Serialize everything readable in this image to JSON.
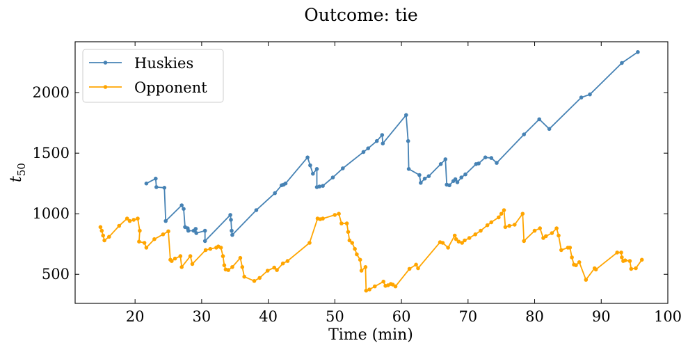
{
  "chart_data": {
    "type": "line",
    "title": "Outcome: tie",
    "xlabel": "Time (min)",
    "ylabel_base": "t",
    "ylabel_sub": "50",
    "xlim": [
      11,
      100
    ],
    "ylim": [
      260,
      2420
    ],
    "xticks": [
      20,
      30,
      40,
      50,
      60,
      70,
      80,
      90,
      100
    ],
    "yticks": [
      500,
      1000,
      1500,
      2000
    ],
    "legend_position": "upper-left",
    "grid": false,
    "series": [
      {
        "name": "Huskies",
        "color": "#4682b4",
        "points": [
          [
            21.7,
            1250
          ],
          [
            23.1,
            1290
          ],
          [
            23.2,
            1220
          ],
          [
            24.4,
            1215
          ],
          [
            24.6,
            940
          ],
          [
            27.0,
            1070
          ],
          [
            27.3,
            1040
          ],
          [
            27.5,
            890
          ],
          [
            27.9,
            880
          ],
          [
            28.0,
            860
          ],
          [
            28.8,
            860
          ],
          [
            29.1,
            875
          ],
          [
            29.2,
            840
          ],
          [
            30.5,
            860
          ],
          [
            30.5,
            775
          ],
          [
            34.3,
            990
          ],
          [
            34.4,
            950
          ],
          [
            34.5,
            860
          ],
          [
            34.6,
            825
          ],
          [
            38.2,
            1030
          ],
          [
            41.0,
            1170
          ],
          [
            42.0,
            1235
          ],
          [
            42.3,
            1240
          ],
          [
            42.6,
            1250
          ],
          [
            45.9,
            1465
          ],
          [
            46.3,
            1400
          ],
          [
            46.7,
            1330
          ],
          [
            47.3,
            1370
          ],
          [
            47.3,
            1220
          ],
          [
            47.7,
            1225
          ],
          [
            48.2,
            1230
          ],
          [
            49.7,
            1300
          ],
          [
            51.2,
            1375
          ],
          [
            54.3,
            1510
          ],
          [
            55.0,
            1540
          ],
          [
            56.3,
            1600
          ],
          [
            57.1,
            1650
          ],
          [
            57.2,
            1580
          ],
          [
            60.7,
            1815
          ],
          [
            61.0,
            1600
          ],
          [
            61.1,
            1370
          ],
          [
            62.7,
            1320
          ],
          [
            62.9,
            1255
          ],
          [
            63.5,
            1290
          ],
          [
            64.1,
            1310
          ],
          [
            65.9,
            1410
          ],
          [
            66.6,
            1450
          ],
          [
            66.8,
            1240
          ],
          [
            67.2,
            1235
          ],
          [
            67.8,
            1270
          ],
          [
            68.1,
            1285
          ],
          [
            68.4,
            1260
          ],
          [
            69.0,
            1300
          ],
          [
            69.6,
            1325
          ],
          [
            71.2,
            1410
          ],
          [
            71.6,
            1415
          ],
          [
            72.6,
            1465
          ],
          [
            73.5,
            1460
          ],
          [
            74.3,
            1420
          ],
          [
            78.4,
            1655
          ],
          [
            80.7,
            1780
          ],
          [
            82.2,
            1700
          ],
          [
            87.0,
            1960
          ],
          [
            88.3,
            1985
          ],
          [
            93.1,
            2245
          ],
          [
            95.5,
            2335
          ]
        ]
      },
      {
        "name": "Opponent",
        "color": "#ffa500",
        "points": [
          [
            14.8,
            890
          ],
          [
            15.0,
            860
          ],
          [
            15.2,
            820
          ],
          [
            15.4,
            780
          ],
          [
            16.1,
            810
          ],
          [
            17.6,
            900
          ],
          [
            18.8,
            960
          ],
          [
            19.2,
            940
          ],
          [
            19.8,
            950
          ],
          [
            20.4,
            960
          ],
          [
            20.7,
            860
          ],
          [
            20.6,
            770
          ],
          [
            21.4,
            760
          ],
          [
            21.7,
            720
          ],
          [
            22.9,
            790
          ],
          [
            24.2,
            830
          ],
          [
            25.0,
            855
          ],
          [
            25.3,
            620
          ],
          [
            25.5,
            610
          ],
          [
            26.0,
            630
          ],
          [
            26.8,
            650
          ],
          [
            27.0,
            560
          ],
          [
            28.3,
            650
          ],
          [
            28.6,
            585
          ],
          [
            30.6,
            700
          ],
          [
            31.3,
            710
          ],
          [
            32.2,
            720
          ],
          [
            32.5,
            730
          ],
          [
            32.9,
            720
          ],
          [
            33.2,
            650
          ],
          [
            33.4,
            575
          ],
          [
            33.6,
            540
          ],
          [
            34.0,
            535
          ],
          [
            34.6,
            560
          ],
          [
            35.8,
            635
          ],
          [
            36.1,
            560
          ],
          [
            36.4,
            480
          ],
          [
            37.9,
            445
          ],
          [
            38.7,
            470
          ],
          [
            39.9,
            530
          ],
          [
            40.9,
            555
          ],
          [
            41.3,
            535
          ],
          [
            42.2,
            590
          ],
          [
            42.9,
            610
          ],
          [
            46.2,
            760
          ],
          [
            47.4,
            960
          ],
          [
            47.8,
            955
          ],
          [
            48.2,
            960
          ],
          [
            50.0,
            990
          ],
          [
            50.6,
            1000
          ],
          [
            51.0,
            920
          ],
          [
            51.8,
            920
          ],
          [
            52.0,
            850
          ],
          [
            52.2,
            780
          ],
          [
            52.6,
            760
          ],
          [
            53.0,
            710
          ],
          [
            53.3,
            665
          ],
          [
            53.8,
            620
          ],
          [
            54.0,
            530
          ],
          [
            54.6,
            560
          ],
          [
            54.7,
            365
          ],
          [
            55.2,
            375
          ],
          [
            56.0,
            400
          ],
          [
            57.3,
            440
          ],
          [
            57.6,
            405
          ],
          [
            58.0,
            410
          ],
          [
            58.4,
            420
          ],
          [
            58.7,
            415
          ],
          [
            59.1,
            400
          ],
          [
            61.2,
            545
          ],
          [
            62.2,
            580
          ],
          [
            62.5,
            550
          ],
          [
            65.8,
            765
          ],
          [
            66.2,
            760
          ],
          [
            67.0,
            720
          ],
          [
            68.0,
            820
          ],
          [
            68.2,
            790
          ],
          [
            68.6,
            770
          ],
          [
            69.1,
            760
          ],
          [
            69.5,
            780
          ],
          [
            70.2,
            800
          ],
          [
            71.1,
            830
          ],
          [
            71.9,
            860
          ],
          [
            72.9,
            905
          ],
          [
            73.5,
            930
          ],
          [
            74.6,
            970
          ],
          [
            75.0,
            1000
          ],
          [
            75.4,
            1030
          ],
          [
            75.6,
            890
          ],
          [
            76.2,
            900
          ],
          [
            77.0,
            910
          ],
          [
            78.2,
            1000
          ],
          [
            78.4,
            775
          ],
          [
            80.0,
            860
          ],
          [
            80.8,
            880
          ],
          [
            81.3,
            800
          ],
          [
            81.7,
            815
          ],
          [
            82.6,
            840
          ],
          [
            83.3,
            880
          ],
          [
            83.6,
            820
          ],
          [
            84.0,
            700
          ],
          [
            85.0,
            720
          ],
          [
            85.3,
            720
          ],
          [
            85.6,
            640
          ],
          [
            85.9,
            580
          ],
          [
            86.2,
            575
          ],
          [
            86.7,
            600
          ],
          [
            87.7,
            455
          ],
          [
            89.0,
            550
          ],
          [
            89.2,
            540
          ],
          [
            92.4,
            680
          ],
          [
            93.0,
            680
          ],
          [
            93.1,
            640
          ],
          [
            93.3,
            610
          ],
          [
            93.6,
            615
          ],
          [
            94.3,
            610
          ],
          [
            94.5,
            545
          ],
          [
            95.2,
            550
          ],
          [
            96.1,
            620
          ]
        ]
      }
    ]
  }
}
